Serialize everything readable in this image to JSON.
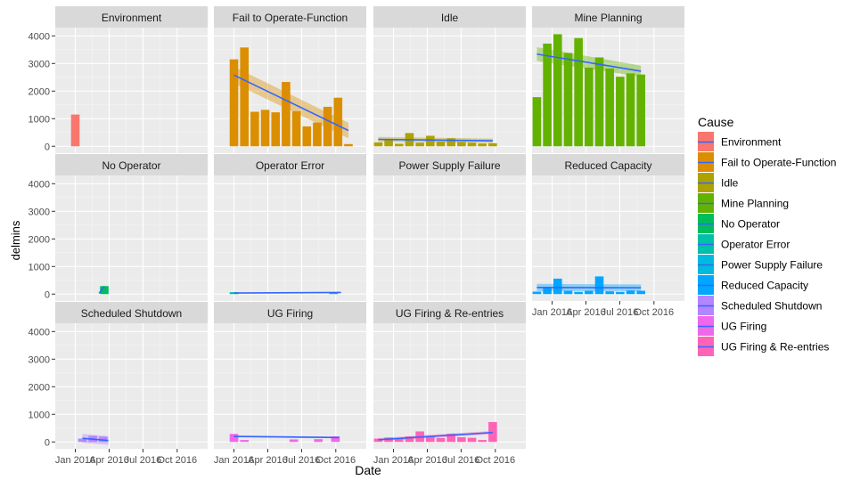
{
  "chart_data": {
    "type": "bar",
    "facet": "Cause",
    "xlabel": "Date",
    "ylabel": "delmins",
    "y_ticks": [
      0,
      1000,
      2000,
      3000,
      4000
    ],
    "ylim": [
      -250,
      4300
    ],
    "x_ticks": [
      {
        "date": "2016-01-01",
        "label": "Jan 2016"
      },
      {
        "date": "2016-04-01",
        "label": "Apr 2016"
      },
      {
        "date": "2016-07-01",
        "label": "Jul 2016"
      },
      {
        "date": "2016-10-01",
        "label": "Oct 2016"
      }
    ],
    "xlim": [
      "2015-11-08",
      "2016-12-22"
    ],
    "grid": true,
    "smooth_color": "#3366FF",
    "legend": {
      "title": "Cause",
      "position": "right",
      "entries": [
        {
          "label": "Environment",
          "color": "#F8766D"
        },
        {
          "label": "Fail to Operate-Function",
          "color": "#DB8E00"
        },
        {
          "label": "Idle",
          "color": "#AEA200"
        },
        {
          "label": "Mine Planning",
          "color": "#64B200"
        },
        {
          "label": "No Operator",
          "color": "#00BD5C"
        },
        {
          "label": "Operator Error",
          "color": "#00C1A7"
        },
        {
          "label": "Power Supply Failure",
          "color": "#00BADE"
        },
        {
          "label": "Reduced Capacity",
          "color": "#00A6FF"
        },
        {
          "label": "Scheduled Shutdown",
          "color": "#B385FF"
        },
        {
          "label": "UG Firing",
          "color": "#EF67EB"
        },
        {
          "label": "UG Firing & Re-entries",
          "color": "#FF63B6"
        }
      ]
    },
    "panels": [
      {
        "name": "Environment",
        "color": "#F8766D",
        "bars": [
          {
            "x": "2016-01-01",
            "y": 1150
          }
        ],
        "smooth": null
      },
      {
        "name": "Fail to Operate-Function",
        "color": "#DB8E00",
        "bars": [
          {
            "x": "2016-01-01",
            "y": 3150
          },
          {
            "x": "2016-01-29",
            "y": 3580
          },
          {
            "x": "2016-02-26",
            "y": 1250
          },
          {
            "x": "2016-03-25",
            "y": 1320
          },
          {
            "x": "2016-04-22",
            "y": 1230
          },
          {
            "x": "2016-05-20",
            "y": 2330
          },
          {
            "x": "2016-06-17",
            "y": 1270
          },
          {
            "x": "2016-07-15",
            "y": 720
          },
          {
            "x": "2016-08-12",
            "y": 860
          },
          {
            "x": "2016-09-09",
            "y": 1430
          },
          {
            "x": "2016-10-07",
            "y": 1760
          },
          {
            "x": "2016-11-04",
            "y": 80
          }
        ],
        "smooth": {
          "x0": "2016-01-01",
          "y0": 2580,
          "x1": "2016-11-04",
          "y1": 570,
          "se0": 300,
          "se1": 280
        }
      },
      {
        "name": "Idle",
        "color": "#AEA200",
        "bars": [
          {
            "x": "2015-11-21",
            "y": 140
          },
          {
            "x": "2015-12-19",
            "y": 250
          },
          {
            "x": "2016-01-16",
            "y": 90
          },
          {
            "x": "2016-02-13",
            "y": 480
          },
          {
            "x": "2016-03-12",
            "y": 130
          },
          {
            "x": "2016-04-09",
            "y": 380
          },
          {
            "x": "2016-05-07",
            "y": 170
          },
          {
            "x": "2016-06-04",
            "y": 290
          },
          {
            "x": "2016-07-02",
            "y": 160
          },
          {
            "x": "2016-07-30",
            "y": 130
          },
          {
            "x": "2016-08-27",
            "y": 100
          },
          {
            "x": "2016-09-24",
            "y": 110
          }
        ],
        "smooth": {
          "x0": "2015-11-21",
          "y0": 250,
          "x1": "2016-09-24",
          "y1": 200,
          "se0": 90,
          "se1": 80
        }
      },
      {
        "name": "Mine Planning",
        "color": "#64B200",
        "bars": [
          {
            "x": "2015-11-21",
            "y": 1780
          },
          {
            "x": "2015-12-19",
            "y": 3720
          },
          {
            "x": "2016-01-16",
            "y": 4060
          },
          {
            "x": "2016-02-13",
            "y": 3380
          },
          {
            "x": "2016-03-12",
            "y": 3920
          },
          {
            "x": "2016-04-09",
            "y": 2850
          },
          {
            "x": "2016-05-07",
            "y": 3220
          },
          {
            "x": "2016-06-04",
            "y": 2820
          },
          {
            "x": "2016-07-02",
            "y": 2520
          },
          {
            "x": "2016-07-30",
            "y": 2640
          },
          {
            "x": "2016-08-27",
            "y": 2600
          }
        ],
        "smooth": {
          "x0": "2015-11-21",
          "y0": 3340,
          "x1": "2016-08-27",
          "y1": 2720,
          "se0": 250,
          "se1": 200
        }
      },
      {
        "name": "No Operator",
        "color": "#00BD5C",
        "bars": [
          {
            "x": "2016-03-19",
            "y": 290
          }
        ],
        "smooth": {
          "x0": "2016-03-05",
          "y0": 30,
          "x1": "2016-03-19",
          "y1": 280,
          "se0": 0,
          "se1": 0
        }
      },
      {
        "name": "Operator Error",
        "color": "#00C1A7",
        "bars": [
          {
            "x": "2016-01-01",
            "y": 70
          },
          {
            "x": "2016-09-25",
            "y": 60
          }
        ],
        "smooth": {
          "x0": "2016-01-01",
          "y0": 40,
          "x1": "2016-10-15",
          "y1": 60,
          "se0": 0,
          "se1": 0
        }
      },
      {
        "name": "Power Supply Failure",
        "color": "#00BADE",
        "bars": [],
        "smooth": null
      },
      {
        "name": "Reduced Capacity",
        "color": "#00A6FF",
        "bars": [
          {
            "x": "2015-11-21",
            "y": 90
          },
          {
            "x": "2015-12-19",
            "y": 230
          },
          {
            "x": "2016-01-16",
            "y": 560
          },
          {
            "x": "2016-02-13",
            "y": 120
          },
          {
            "x": "2016-03-12",
            "y": 80
          },
          {
            "x": "2016-04-09",
            "y": 120
          },
          {
            "x": "2016-05-07",
            "y": 640
          },
          {
            "x": "2016-06-04",
            "y": 100
          },
          {
            "x": "2016-07-02",
            "y": 80
          },
          {
            "x": "2016-07-30",
            "y": 130
          },
          {
            "x": "2016-08-27",
            "y": 120
          }
        ],
        "smooth": {
          "x0": "2015-11-21",
          "y0": 240,
          "x1": "2016-08-27",
          "y1": 230,
          "se0": 130,
          "se1": 120
        }
      },
      {
        "name": "Scheduled Shutdown",
        "color": "#B385FF",
        "bars": [
          {
            "x": "2016-01-20",
            "y": 120
          },
          {
            "x": "2016-02-17",
            "y": 220
          },
          {
            "x": "2016-03-16",
            "y": 190
          }
        ],
        "smooth": {
          "x0": "2016-01-20",
          "y0": 130,
          "x1": "2016-03-30",
          "y1": 50,
          "se0": 160,
          "se1": 160
        }
      },
      {
        "name": "UG Firing",
        "color": "#EF67EB",
        "bars": [
          {
            "x": "2016-01-01",
            "y": 290
          },
          {
            "x": "2016-01-29",
            "y": 70
          },
          {
            "x": "2016-06-10",
            "y": 90
          },
          {
            "x": "2016-08-15",
            "y": 100
          },
          {
            "x": "2016-09-30",
            "y": 200
          }
        ],
        "smooth": {
          "x0": "2016-01-01",
          "y0": 200,
          "x1": "2016-10-10",
          "y1": 160,
          "se0": 30,
          "se1": 30
        }
      },
      {
        "name": "UG Firing & Re-entries",
        "color": "#FF63B6",
        "bars": [
          {
            "x": "2015-11-21",
            "y": 120
          },
          {
            "x": "2015-12-19",
            "y": 160
          },
          {
            "x": "2016-01-16",
            "y": 120
          },
          {
            "x": "2016-02-13",
            "y": 200
          },
          {
            "x": "2016-03-12",
            "y": 380
          },
          {
            "x": "2016-04-09",
            "y": 220
          },
          {
            "x": "2016-05-07",
            "y": 140
          },
          {
            "x": "2016-06-04",
            "y": 300
          },
          {
            "x": "2016-07-02",
            "y": 170
          },
          {
            "x": "2016-07-30",
            "y": 150
          },
          {
            "x": "2016-08-27",
            "y": 70
          },
          {
            "x": "2016-09-24",
            "y": 720
          }
        ],
        "smooth": {
          "x0": "2015-11-21",
          "y0": 80,
          "x1": "2016-09-24",
          "y1": 340,
          "se0": 60,
          "se1": 60
        }
      }
    ]
  }
}
